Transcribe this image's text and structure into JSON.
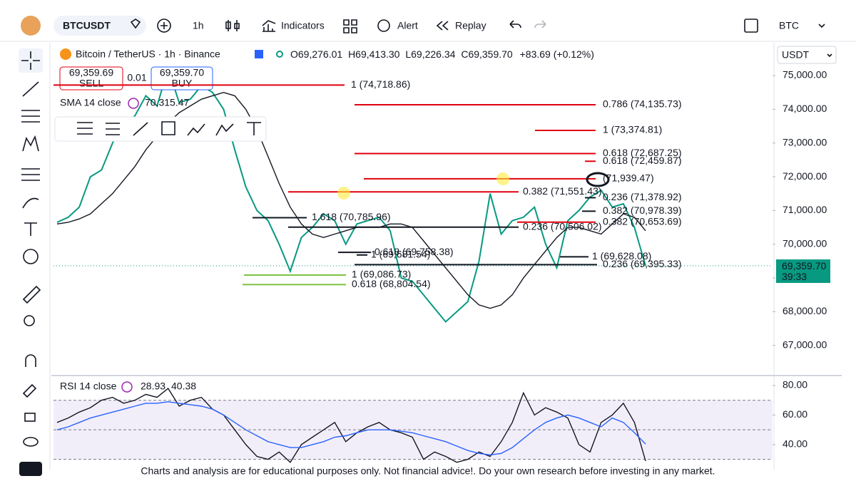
{
  "toolbar": {
    "symbol": "BTCUSDT",
    "interval": "1h",
    "indicators": "Indicators",
    "alert": "Alert",
    "replay": "Replay",
    "ticker": "BTC",
    "currency": "USDT"
  },
  "legend": {
    "open": "O69,276.01",
    "high": "H69,413.30",
    "low": "L69,226.34",
    "close": "C69,359.70",
    "change": "+83.69 (+0.12%)",
    "sell_price": "69,359.69",
    "sell": "SELL",
    "spread": "0.01",
    "buy_price": "69,359.70",
    "buy": "BUY",
    "sma_value": "70,315.47"
  },
  "footer": "Charts and analysis are for educational purposes only. Not financial advice!. Do your own research before investing in any market.",
  "chart_data": [
    {
      "type": "line",
      "title": "Bitcoin / TetherUS · 1h · Binance",
      "ylim": [
        66150,
        75930
      ],
      "yticks": [
        {
          "value": 67000,
          "label": "67,000.00"
        },
        {
          "value": 68000,
          "label": "68,000.00"
        },
        {
          "value": 69000,
          "label": "69,000.00"
        },
        {
          "value": 70000,
          "label": "70,000.00"
        },
        {
          "value": 71000,
          "label": "71,000.00"
        },
        {
          "value": 72000,
          "label": "72,000.00"
        },
        {
          "value": 73000,
          "label": "73,000.00"
        },
        {
          "value": 74000,
          "label": "74,000.00"
        },
        {
          "value": 75000,
          "label": "75,000.00"
        }
      ],
      "series": [
        {
          "color": "#089981",
          "values": [
            70650,
            70800,
            71100,
            72000,
            72200,
            73000,
            73600,
            73800,
            74400,
            74100,
            75200,
            74200,
            74300,
            74700,
            74500,
            74000,
            72800,
            71700,
            71000,
            70700,
            70000,
            69200,
            70200,
            70500,
            70900,
            70700,
            70000,
            70600,
            70700,
            70800,
            70400,
            69000,
            68900,
            68500,
            68100,
            67700,
            68000,
            68300,
            69500,
            71500,
            70300,
            70700,
            70800,
            71100,
            70000,
            69300,
            70700,
            71000,
            71400,
            71600,
            71100,
            71200,
            70500,
            69360
          ]
        },
        {
          "name": "SMA 14 close",
          "color": "#131722",
          "values": [
            70600,
            70650,
            70750,
            70900,
            71200,
            71500,
            71900,
            72300,
            72800,
            73200,
            73600,
            73900,
            74100,
            74300,
            74400,
            74500,
            74400,
            74000,
            73400,
            72600,
            71800,
            71100,
            70600,
            70300,
            70200,
            70300,
            70400,
            70500,
            70500,
            70500,
            70600,
            70600,
            70500,
            70100,
            69700,
            69300,
            68900,
            68500,
            68200,
            68100,
            68200,
            68500,
            69000,
            69400,
            69800,
            70200,
            70500,
            70500,
            70400,
            70300,
            70600,
            70900,
            70800,
            70400
          ]
        }
      ],
      "levels": [
        {
          "label": "1 (74,718.86)",
          "value": 74718.86,
          "color": "#e0000f"
        },
        {
          "label": "0.786 (74,135.73)",
          "value": 74135.73,
          "color": "#e0000f"
        },
        {
          "label": "1 (73,374.81)",
          "value": 73374.81,
          "color": "#e0000f"
        },
        {
          "label": "0.618 (72,687.25)",
          "value": 72687.25,
          "color": "#e0000f"
        },
        {
          "label": "0.618 (72,459.87)",
          "value": 72459.87,
          "color": "#e0000f"
        },
        {
          "label": "(71,939.47)",
          "value": 71939.47,
          "color": "#e0000f"
        },
        {
          "label": "0.382 (71,551.43)",
          "value": 71551.43,
          "color": "#e0000f"
        },
        {
          "label": "0.236 (71,378.92)",
          "value": 71378.92,
          "color": "#131722"
        },
        {
          "label": "0.382 (70,978.39)",
          "value": 70978.39,
          "color": "#131722"
        },
        {
          "label": "1.618 (70,785.96)",
          "value": 70785.96,
          "color": "#131722"
        },
        {
          "label": "0.382 (70,653.69)",
          "value": 70653.69,
          "color": "#e0000f"
        },
        {
          "label": "0.236 (70,506.02)",
          "value": 70506.02,
          "color": "#131722"
        },
        {
          "label": "0.618 (69,758.38)",
          "value": 69758.38,
          "color": "#131722"
        },
        {
          "label": "1 (69,681.54)",
          "value": 69681.54,
          "color": "#131722"
        },
        {
          "label": "1 (69,628.08)",
          "value": 69628.08,
          "color": "#131722"
        },
        {
          "label": "0.236 (69,395.33)",
          "value": 69395.33,
          "color": "#131722"
        },
        {
          "label": "1 (69,086.73)",
          "value": 69086.73,
          "color": "#7cc242"
        },
        {
          "label": "0.618 (68,804.54)",
          "value": 68804.54,
          "color": "#7cc242"
        }
      ],
      "last_price": {
        "value": 69359.7,
        "label": "69,359.70"
      },
      "countdown": "39:33"
    },
    {
      "type": "line",
      "title": "RSI 14 close",
      "ylim": [
        25,
        85.3
      ],
      "yticks": [
        {
          "value": 40,
          "label": "40.00"
        },
        {
          "value": 60,
          "label": "60.00"
        },
        {
          "value": 80,
          "label": "80.00"
        }
      ],
      "band": [
        30,
        70
      ],
      "levels": [
        70,
        50,
        30
      ],
      "series": [
        {
          "color": "#131722",
          "value_label": "28.93",
          "values": [
            55,
            58,
            62,
            65,
            70,
            72,
            68,
            70,
            74,
            72,
            78,
            66,
            70,
            72,
            64,
            60,
            50,
            40,
            32,
            30,
            35,
            28,
            40,
            45,
            50,
            55,
            42,
            48,
            52,
            55,
            50,
            48,
            45,
            30,
            35,
            32,
            28,
            30,
            35,
            32,
            42,
            55,
            75,
            60,
            65,
            62,
            58,
            40,
            35,
            55,
            60,
            68,
            55,
            28.93
          ]
        },
        {
          "color": "#2962ff",
          "value_label": "40.38",
          "values": [
            50,
            52,
            55,
            58,
            60,
            62,
            64,
            66,
            68,
            68,
            69,
            68,
            67,
            66,
            64,
            60,
            55,
            50,
            46,
            42,
            40,
            38,
            38,
            40,
            42,
            45,
            46,
            48,
            50,
            50,
            50,
            49,
            48,
            46,
            44,
            42,
            39,
            36,
            34,
            33,
            34,
            38,
            44,
            50,
            55,
            58,
            60,
            58,
            55,
            52,
            58,
            55,
            48,
            40.38
          ]
        }
      ]
    }
  ]
}
